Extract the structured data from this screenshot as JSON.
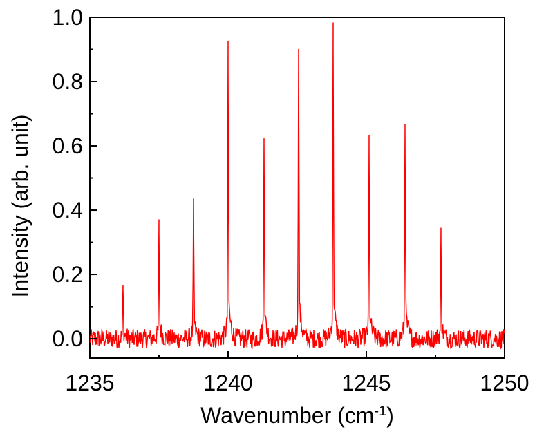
{
  "chart_data": {
    "type": "line",
    "xlabel": "Wavenumber (cm",
    "xlabel_sup": "-1",
    "xlabel_close": ")",
    "ylabel": "Intensity (arb. unit)",
    "xlim": [
      1235,
      1250
    ],
    "ylim": [
      -0.06,
      1.0
    ],
    "x_ticks": [
      1235,
      1240,
      1245,
      1250
    ],
    "x_tick_labels": [
      "1235",
      "1240",
      "1245",
      "1250"
    ],
    "y_ticks": [
      0.0,
      0.2,
      0.4,
      0.6,
      0.8,
      1.0
    ],
    "y_tick_labels": [
      "0.0",
      "0.2",
      "0.4",
      "0.6",
      "0.8",
      "1.0"
    ],
    "grid": false,
    "line_color": "#ff0000",
    "series": [
      {
        "peaks": [
          {
            "x": 1236.2,
            "y": 0.15
          },
          {
            "x": 1237.5,
            "y": 0.33
          },
          {
            "x": 1238.75,
            "y": 0.38
          },
          {
            "x": 1240.0,
            "y": 0.84
          },
          {
            "x": 1241.3,
            "y": 0.61
          },
          {
            "x": 1242.55,
            "y": 0.87
          },
          {
            "x": 1243.8,
            "y": 0.9
          },
          {
            "x": 1245.1,
            "y": 0.58
          },
          {
            "x": 1246.4,
            "y": 0.64
          },
          {
            "x": 1247.7,
            "y": 0.31
          }
        ],
        "baseline": 0.0,
        "noise_amplitude": 0.03
      }
    ]
  }
}
